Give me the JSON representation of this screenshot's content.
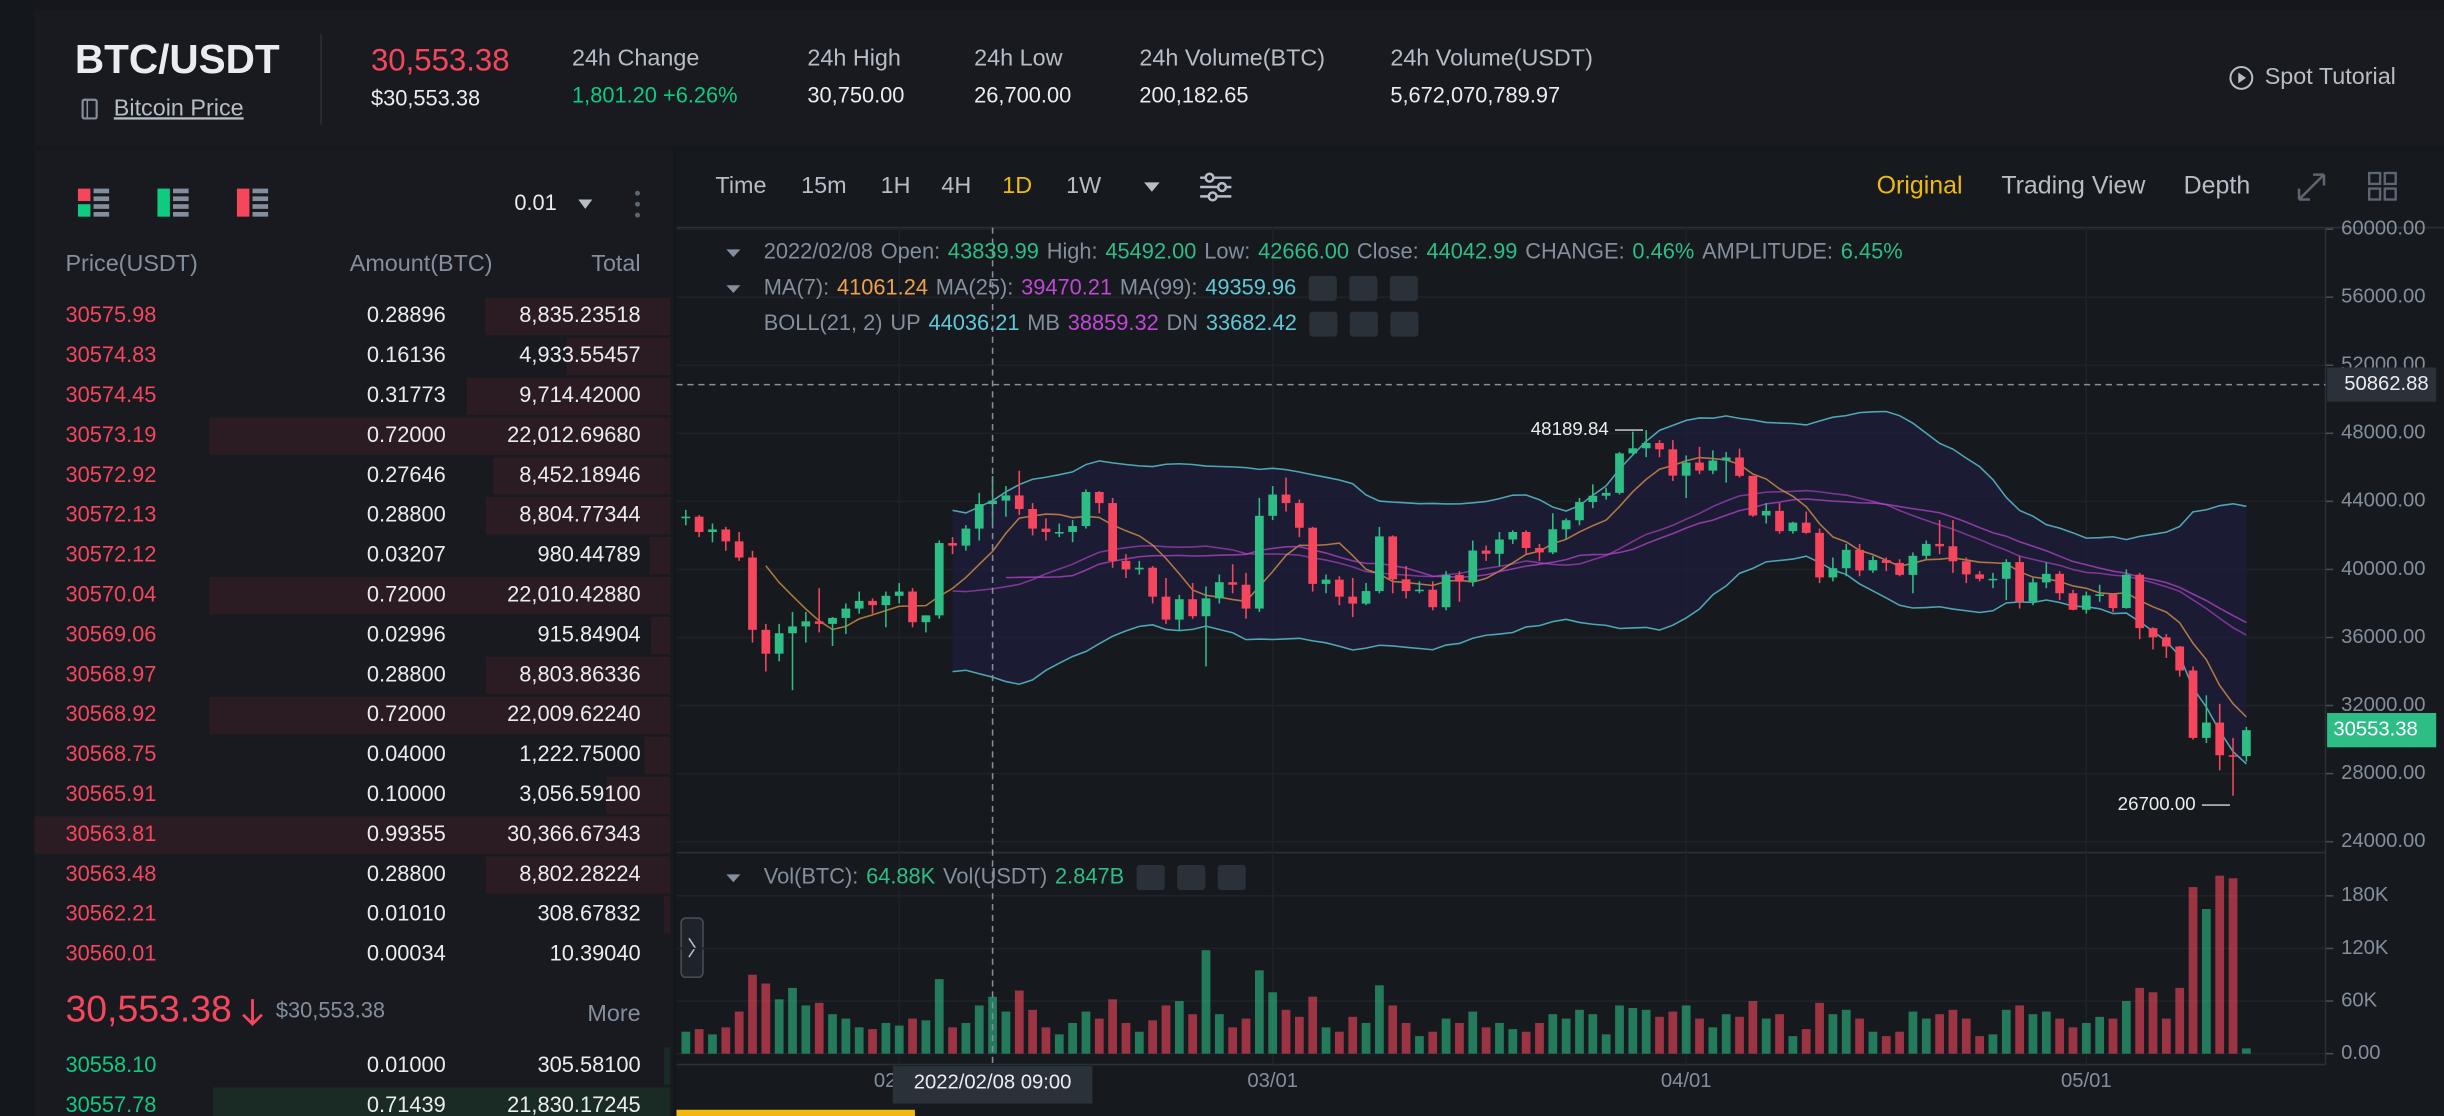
{
  "header": {
    "pair": "BTC/USDT",
    "link": "Bitcoin Price",
    "price": "30,553.38",
    "price_usd": "$30,553.38",
    "stats": [
      {
        "label": "24h Change",
        "value": "1,801.20 +6.26%"
      },
      {
        "label": "24h High",
        "value": "30,750.00"
      },
      {
        "label": "24h Low",
        "value": "26,700.00"
      },
      {
        "label": "24h Volume(BTC)",
        "value": "200,182.65"
      },
      {
        "label": "24h Volume(USDT)",
        "value": "5,672,070,789.97"
      }
    ],
    "tutorial": "Spot Tutorial"
  },
  "order_book": {
    "precision": "0.01",
    "columns": [
      "Price(USDT)",
      "Amount(BTC)",
      "Total"
    ],
    "asks": [
      [
        "30575.98",
        "0.28896",
        "8,835.23518"
      ],
      [
        "30574.83",
        "0.16136",
        "4,933.55457"
      ],
      [
        "30574.45",
        "0.31773",
        "9,714.42000"
      ],
      [
        "30573.19",
        "0.72000",
        "22,012.69680"
      ],
      [
        "30572.92",
        "0.27646",
        "8,452.18946"
      ],
      [
        "30572.13",
        "0.28800",
        "8,804.77344"
      ],
      [
        "30572.12",
        "0.03207",
        "980.44789"
      ],
      [
        "30570.04",
        "0.72000",
        "22,010.42880"
      ],
      [
        "30569.06",
        "0.02996",
        "915.84904"
      ],
      [
        "30568.97",
        "0.28800",
        "8,803.86336"
      ],
      [
        "30568.92",
        "0.72000",
        "22,009.62240"
      ],
      [
        "30568.75",
        "0.04000",
        "1,222.75000"
      ],
      [
        "30565.91",
        "0.10000",
        "3,056.59100"
      ],
      [
        "30563.81",
        "0.99355",
        "30,366.67343"
      ],
      [
        "30563.48",
        "0.28800",
        "8,802.28224"
      ],
      [
        "30562.21",
        "0.01010",
        "308.67832"
      ],
      [
        "30560.01",
        "0.00034",
        "10.39040"
      ]
    ],
    "last_price": "30,553.38",
    "last_price_usd": "$30,553.38",
    "more": "More",
    "bids": [
      [
        "30558.10",
        "0.01000",
        "305.58100"
      ],
      [
        "30557.78",
        "0.71439",
        "21,830.17245"
      ]
    ],
    "ask_color": "#f6465d",
    "bid_color": "#0ecb81"
  },
  "toolbar": {
    "intervals": [
      "Time",
      "15m",
      "1H",
      "4H",
      "1D",
      "1W"
    ],
    "active_interval": 4,
    "views": [
      "Original",
      "Trading View",
      "Depth"
    ],
    "active_view": 0
  },
  "chart_data": {
    "type": "candlestick",
    "legend": {
      "date": "2022/02/08",
      "value_color": "#2ebd85",
      "ohlc": [
        {
          "label": "Open:",
          "value": "43839.99"
        },
        {
          "label": "High:",
          "value": "45492.00"
        },
        {
          "label": "Low:",
          "value": "42666.00"
        },
        {
          "label": "Close:",
          "value": "44042.99"
        },
        {
          "label": "CHANGE:",
          "value": "0.46%"
        },
        {
          "label": "AMPLITUDE:",
          "value": "6.45%"
        }
      ],
      "ma": [
        {
          "label": "MA(7):",
          "value": "41061.24",
          "color": "#f0a04b"
        },
        {
          "label": "MA(25):",
          "value": "39470.21",
          "color": "#c147d6"
        },
        {
          "label": "MA(99):",
          "value": "49359.96",
          "color": "#5fc8d6"
        }
      ],
      "boll": {
        "label": "BOLL(21, 2)",
        "items": [
          {
            "label": "UP",
            "value": "44036.21",
            "color": "#5fc8d6"
          },
          {
            "label": "MB",
            "value": "38859.32",
            "color": "#c147d6"
          },
          {
            "label": "DN",
            "value": "33682.42",
            "color": "#5fc8d6"
          }
        ]
      }
    },
    "candles": [
      [
        43080,
        43500,
        42600,
        43100
      ],
      [
        43100,
        43200,
        41900,
        42200
      ],
      [
        42200,
        42700,
        41600,
        42350
      ],
      [
        42350,
        42500,
        41100,
        41650
      ],
      [
        41650,
        42200,
        40500,
        40700
      ],
      [
        40700,
        41100,
        35700,
        36450
      ],
      [
        36450,
        36800,
        34000,
        35050
      ],
      [
        35050,
        36800,
        34600,
        36250
      ],
      [
        36250,
        37500,
        32900,
        36650
      ],
      [
        36650,
        37500,
        35700,
        36950
      ],
      [
        36950,
        38900,
        36300,
        36800
      ],
      [
        36800,
        37200,
        35500,
        37150
      ],
      [
        37150,
        38000,
        36200,
        37700
      ],
      [
        37700,
        38700,
        37400,
        38150
      ],
      [
        38150,
        38300,
        37400,
        37900
      ],
      [
        37900,
        38700,
        36600,
        38450
      ],
      [
        38450,
        39200,
        38000,
        38700
      ],
      [
        38700,
        38900,
        36600,
        36900
      ],
      [
        36900,
        37300,
        36300,
        37300
      ],
      [
        37300,
        41700,
        37100,
        41550
      ],
      [
        41550,
        41900,
        40900,
        41400
      ],
      [
        41400,
        42600,
        41100,
        42400
      ],
      [
        42400,
        44500,
        41700,
        43839.99
      ],
      [
        43839.99,
        45492,
        42666,
        44042.99
      ],
      [
        44042.99,
        44900,
        43100,
        44350
      ],
      [
        44350,
        45800,
        43200,
        43550
      ],
      [
        43550,
        43900,
        42000,
        42400
      ],
      [
        42400,
        43000,
        41700,
        42200
      ],
      [
        42200,
        42700,
        41900,
        42200
      ],
      [
        42200,
        42900,
        41600,
        42550
      ],
      [
        42550,
        44700,
        42400,
        44550
      ],
      [
        44550,
        44600,
        43300,
        43900
      ],
      [
        43900,
        44200,
        40100,
        40500
      ],
      [
        40500,
        40900,
        39500,
        40000
      ],
      [
        40000,
        40500,
        39700,
        40100
      ],
      [
        40100,
        40200,
        38000,
        38400
      ],
      [
        38400,
        39500,
        36800,
        37050
      ],
      [
        37050,
        38500,
        36400,
        38250
      ],
      [
        38250,
        39200,
        37100,
        37250
      ],
      [
        37250,
        39000,
        34300,
        38300
      ],
      [
        38300,
        39700,
        38000,
        39250
      ],
      [
        39250,
        40300,
        38600,
        39100
      ],
      [
        39100,
        39800,
        37100,
        37700
      ],
      [
        37700,
        44200,
        37500,
        43150
      ],
      [
        43150,
        44900,
        42900,
        44400
      ],
      [
        44400,
        45400,
        43400,
        43900
      ],
      [
        43900,
        44100,
        41900,
        42450
      ],
      [
        42450,
        42500,
        38700,
        39150
      ],
      [
        39150,
        39700,
        38600,
        39400
      ],
      [
        39400,
        39600,
        37900,
        38400
      ],
      [
        38400,
        39500,
        37200,
        37990
      ],
      [
        37990,
        39200,
        37900,
        38730
      ],
      [
        38730,
        42500,
        38600,
        41940
      ],
      [
        41940,
        42000,
        38600,
        39420
      ],
      [
        39420,
        40200,
        38300,
        38730
      ],
      [
        38730,
        39300,
        38600,
        38810
      ],
      [
        38810,
        39300,
        37600,
        37780
      ],
      [
        37780,
        39900,
        37600,
        39670
      ],
      [
        39670,
        39900,
        38100,
        39280
      ],
      [
        39280,
        41700,
        39000,
        41110
      ],
      [
        41110,
        41400,
        40500,
        40920
      ],
      [
        40920,
        42200,
        40200,
        41760
      ],
      [
        41760,
        42300,
        41500,
        42200
      ],
      [
        42200,
        42300,
        40900,
        41260
      ],
      [
        41260,
        41500,
        40500,
        41000
      ],
      [
        41000,
        43300,
        40900,
        42360
      ],
      [
        42360,
        43000,
        41800,
        42890
      ],
      [
        42890,
        44200,
        42600,
        43960
      ],
      [
        43960,
        45000,
        43600,
        44330
      ],
      [
        44330,
        44800,
        44100,
        44500
      ],
      [
        44500,
        46900,
        44400,
        46820
      ],
      [
        46820,
        48100,
        46700,
        47120
      ],
      [
        47120,
        48189.84,
        46600,
        47430
      ],
      [
        47430,
        47600,
        46600,
        47060
      ],
      [
        47060,
        47600,
        45200,
        45510
      ],
      [
        45510,
        46700,
        44200,
        46280
      ],
      [
        46280,
        47200,
        45600,
        45810
      ],
      [
        45810,
        47000,
        45600,
        46400
      ],
      [
        46400,
        46900,
        45100,
        46580
      ],
      [
        46580,
        47100,
        45400,
        45500
      ],
      [
        45500,
        45500,
        43100,
        43170
      ],
      [
        43170,
        43900,
        42700,
        43440
      ],
      [
        43440,
        43900,
        42100,
        42250
      ],
      [
        42250,
        42800,
        42100,
        42750
      ],
      [
        42750,
        43400,
        42100,
        42150
      ],
      [
        42150,
        42400,
        39200,
        39530
      ],
      [
        39530,
        40700,
        39300,
        40070
      ],
      [
        40070,
        41500,
        39600,
        41150
      ],
      [
        41150,
        41500,
        39600,
        39940
      ],
      [
        39940,
        40800,
        39800,
        40550
      ],
      [
        40550,
        40700,
        39900,
        40380
      ],
      [
        40380,
        40600,
        39600,
        39680
      ],
      [
        39680,
        41000,
        38600,
        40800
      ],
      [
        40800,
        41700,
        40600,
        41500
      ],
      [
        41500,
        42900,
        40900,
        41360
      ],
      [
        41360,
        42900,
        39800,
        40480
      ],
      [
        40480,
        40700,
        39200,
        39710
      ],
      [
        39710,
        39900,
        39300,
        39450
      ],
      [
        39450,
        39800,
        38900,
        39450
      ],
      [
        39450,
        40600,
        38200,
        40430
      ],
      [
        40430,
        40800,
        37700,
        38120
      ],
      [
        38120,
        39500,
        37900,
        39240
      ],
      [
        39240,
        40400,
        38900,
        39740
      ],
      [
        39740,
        39900,
        38200,
        38600
      ],
      [
        38600,
        38800,
        37600,
        37630
      ],
      [
        37630,
        38700,
        37400,
        38470
      ],
      [
        38470,
        39100,
        38100,
        38530
      ],
      [
        38530,
        38600,
        37500,
        37730
      ],
      [
        37730,
        40000,
        37700,
        39690
      ],
      [
        39690,
        39800,
        35900,
        36550
      ],
      [
        36550,
        36600,
        35300,
        36010
      ],
      [
        36010,
        36200,
        34800,
        35470
      ],
      [
        35470,
        35500,
        33700,
        34060
      ],
      [
        34060,
        34300,
        30000,
        30100
      ],
      [
        30100,
        32600,
        29800,
        31000
      ],
      [
        31000,
        32100,
        28200,
        29080
      ],
      [
        29080,
        30100,
        26700,
        29030
      ],
      [
        29030,
        30750,
        28700,
        30553.38
      ]
    ],
    "up_color": "#2ebd85",
    "down_color": "#f6465d",
    "xlim": [
      -0.7,
      122.7
    ],
    "xticks": [
      {
        "value": 16,
        "label": "02/01"
      },
      {
        "value": 44,
        "label": "03/01"
      },
      {
        "value": 75,
        "label": "04/01"
      },
      {
        "value": 105,
        "label": "05/01"
      }
    ],
    "ylim": [
      24000,
      60000
    ],
    "yticks": [
      {
        "value": 60000,
        "label": "60000.00"
      },
      {
        "value": 56000,
        "label": "56000.00"
      },
      {
        "value": 52000,
        "label": "52000.00"
      },
      {
        "value": 48000,
        "label": "48000.00"
      },
      {
        "value": 44000,
        "label": "44000.00"
      },
      {
        "value": 40000,
        "label": "40000.00"
      },
      {
        "value": 36000,
        "label": "36000.00"
      },
      {
        "value": 32000,
        "label": "32000.00"
      },
      {
        "value": 28000,
        "label": "28000.00"
      },
      {
        "value": 24000,
        "label": "24000.00"
      }
    ],
    "grid": true,
    "crosshair": {
      "x": 23,
      "x_label": "2022/02/08 09:00",
      "y": 50862.88
    },
    "last_price": 30553.38,
    "annotations": [
      {
        "index": 72,
        "value": 48189.84
      },
      {
        "index": 116,
        "value": 26700,
        "label": "26700.00"
      }
    ],
    "volume": {
      "legend": [
        {
          "label": "Vol(BTC):",
          "value": "64.88K"
        },
        {
          "label": "Vol(USDT)",
          "value": "2.847B"
        }
      ],
      "values": [
        25000,
        28000,
        22000,
        30000,
        48000,
        90000,
        80000,
        62000,
        75000,
        55000,
        58000,
        45000,
        40000,
        30000,
        28000,
        35000,
        32000,
        40000,
        38000,
        85000,
        30000,
        35000,
        55000,
        64880,
        48000,
        72000,
        50000,
        30000,
        22000,
        35000,
        48000,
        40000,
        62000,
        35000,
        25000,
        38000,
        55000,
        60000,
        45000,
        118000,
        45000,
        30000,
        40000,
        95000,
        70000,
        50000,
        42000,
        65000,
        30000,
        25000,
        42000,
        35000,
        78000,
        55000,
        35000,
        20000,
        25000,
        40000,
        35000,
        48000,
        30000,
        35000,
        28000,
        25000,
        35000,
        45000,
        40000,
        50000,
        45000,
        22000,
        55000,
        52000,
        50000,
        42000,
        48000,
        55000,
        40000,
        30000,
        45000,
        42000,
        60000,
        40000,
        45000,
        20000,
        28000,
        58000,
        45000,
        50000,
        40000,
        25000,
        20000,
        25000,
        48000,
        40000,
        45000,
        50000,
        40000,
        20000,
        22000,
        50000,
        55000,
        45000,
        48000,
        40000,
        30000,
        35000,
        42000,
        40000,
        60000,
        75000,
        70000,
        40000,
        75000,
        190000,
        165000,
        203000,
        200000,
        6000
      ],
      "ylim": [
        0,
        224000
      ],
      "yticks": [
        {
          "value": 180000,
          "label": "180K"
        },
        {
          "value": 120000,
          "label": "120K"
        },
        {
          "value": 60000,
          "label": "60K"
        },
        {
          "value": 0,
          "label": "0.00"
        }
      ]
    }
  }
}
